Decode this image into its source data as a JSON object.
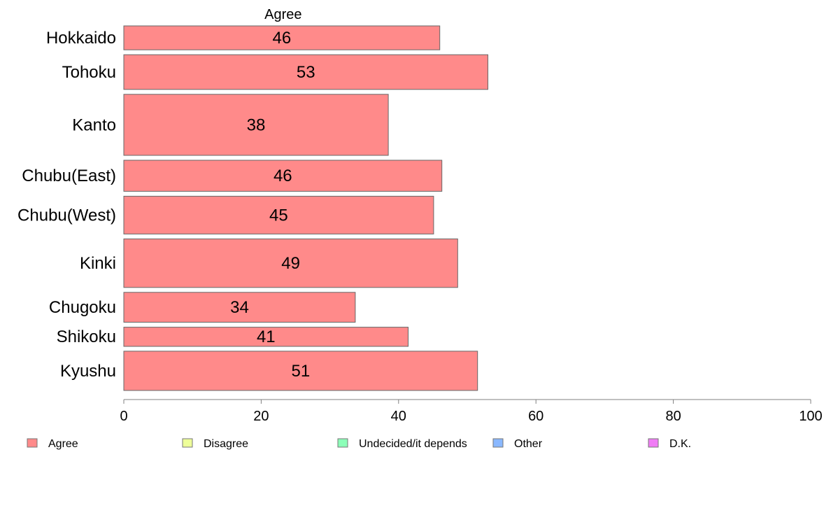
{
  "chart_data": {
    "type": "bar",
    "orientation": "horizontal",
    "series_title": "Agree",
    "categories": [
      "Hokkaido",
      "Tohoku",
      "Kanto",
      "Chubu(East)",
      "Chubu(West)",
      "Kinki",
      "Chugoku",
      "Shikoku",
      "Kyushu"
    ],
    "series": [
      {
        "name": "Agree",
        "values": [
          46,
          53,
          38.5,
          46.3,
          45.1,
          48.6,
          33.7,
          41.4,
          51.5
        ],
        "labels": [
          "46",
          "53",
          "38",
          "46",
          "45",
          "49",
          "34",
          "41",
          "51"
        ]
      }
    ],
    "bar_weights": [
      1,
      1.45,
      2.55,
      1.3,
      1.58,
      2.03,
      1.25,
      0.8,
      1.64
    ],
    "xlim": [
      0,
      100
    ],
    "xticks": [
      "0",
      "20",
      "40",
      "60",
      "80",
      "100"
    ],
    "legend": {
      "placement": "bottom",
      "items": [
        {
          "label": "Agree",
          "color": "#ff8a8a"
        },
        {
          "label": "Disagree",
          "color": "#eeff99"
        },
        {
          "label": "Undecided/it depends",
          "color": "#8cffb8"
        },
        {
          "label": "Other",
          "color": "#8ab8ff"
        },
        {
          "label": "D.K.",
          "color": "#f07cf5"
        }
      ]
    },
    "bar_color": "#ff8a8a",
    "bar_edge_color": "#666666"
  }
}
